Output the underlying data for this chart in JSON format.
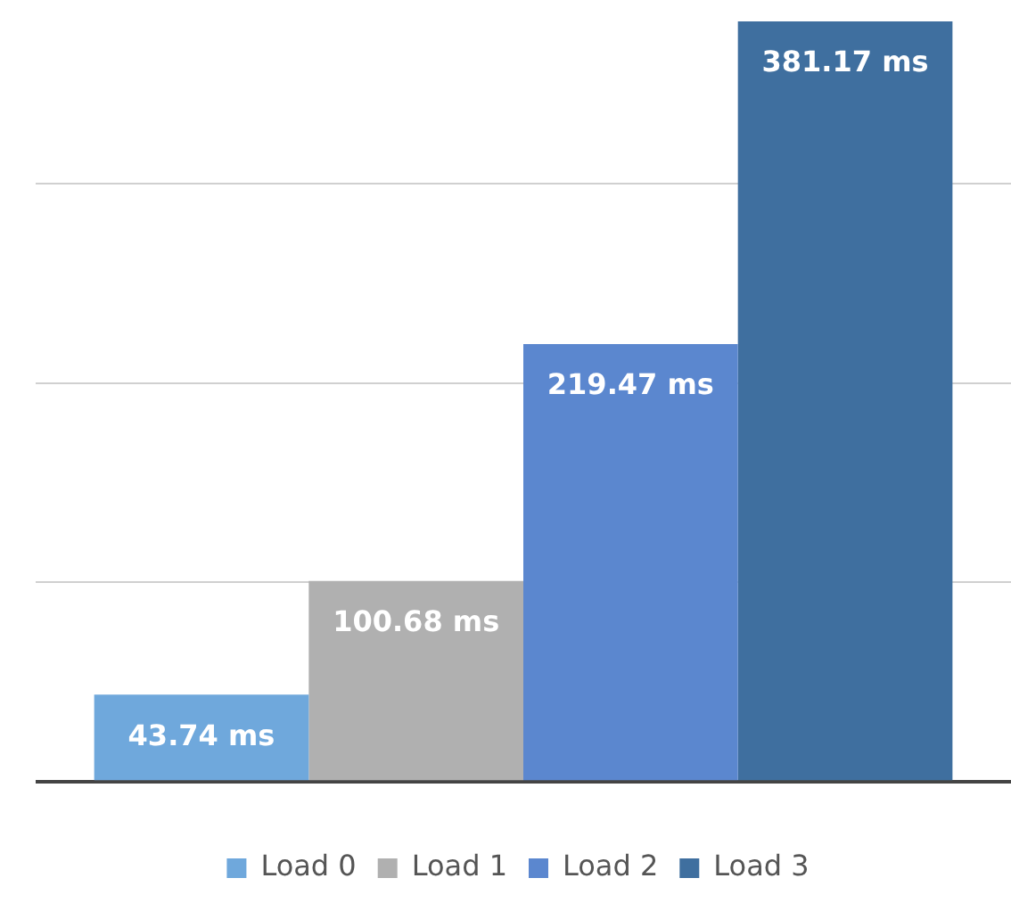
{
  "chart_data": {
    "type": "bar",
    "categories": [
      null
    ],
    "series": [
      {
        "name": "Load 0",
        "color": "#6fa8dc",
        "values": [
          43.74
        ],
        "value_labels": [
          "43.74 ms"
        ]
      },
      {
        "name": "Load 1",
        "color": "#b0b0b0",
        "values": [
          100.68
        ],
        "value_labels": [
          "100.68 ms"
        ]
      },
      {
        "name": "Load 2",
        "color": "#5b87cf",
        "values": [
          219.47
        ],
        "value_labels": [
          "219.47 ms"
        ]
      },
      {
        "name": "Load 3",
        "color": "#3f6f9f",
        "values": [
          381.17
        ],
        "value_labels": [
          "381.17 ms"
        ]
      }
    ],
    "yticks": [
      {
        "value": 0,
        "label": null
      },
      {
        "value": 100,
        "label": null
      },
      {
        "value": 200,
        "label": null
      },
      {
        "value": 300,
        "label": null
      }
    ],
    "grid": "y",
    "legend": "bottom"
  }
}
